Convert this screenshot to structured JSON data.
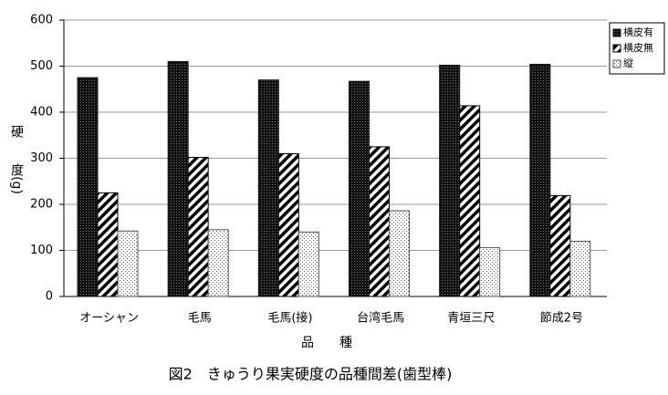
{
  "chart_data": {
    "type": "bar",
    "ylabel": "硬　　度(g)",
    "xlabel": "品　　種",
    "caption": "図2　きゅうり果実硬度の品種間差(歯型棒)",
    "categories": [
      "オーシャン",
      "毛馬",
      "毛馬(接)",
      "台湾毛馬",
      "青垣三尺",
      "節成2号"
    ],
    "series": [
      {
        "name": "横皮有",
        "color": "#111111",
        "pattern": "dense",
        "values": [
          475,
          510,
          470,
          467,
          502,
          504
        ]
      },
      {
        "name": "横皮無",
        "color": "#000000",
        "pattern": "hatch",
        "values": [
          225,
          302,
          310,
          325,
          414,
          219
        ]
      },
      {
        "name": "縦",
        "color": "#555555",
        "pattern": "dots",
        "values": [
          142,
          145,
          140,
          186,
          106,
          120
        ]
      }
    ],
    "ylim": [
      0,
      600
    ],
    "yticks": [
      0,
      100,
      200,
      300,
      400,
      500,
      600
    ],
    "grid": true,
    "legend": "top-right"
  }
}
